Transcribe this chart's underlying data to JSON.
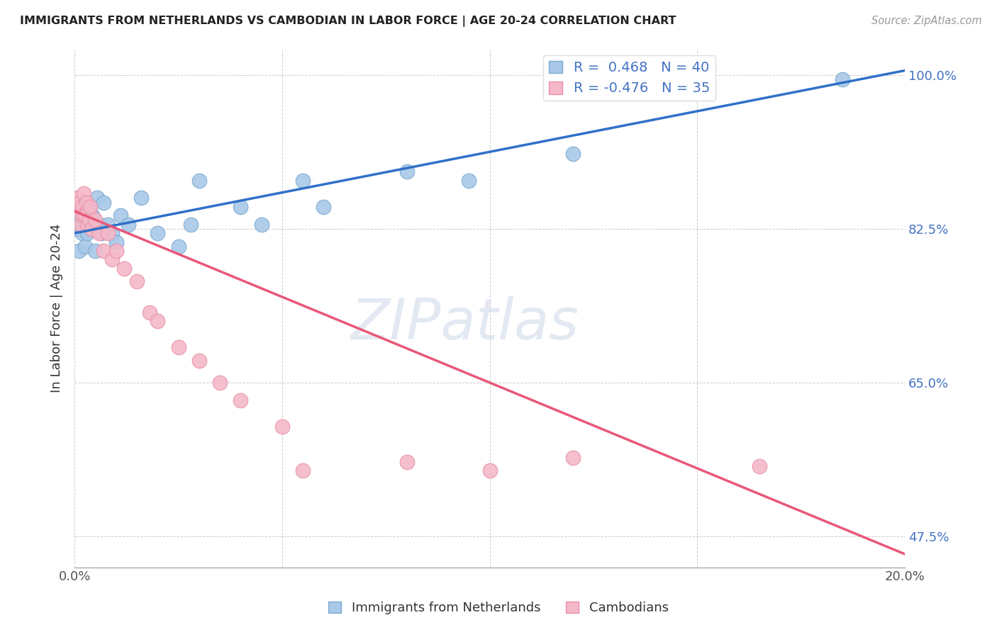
{
  "title": "IMMIGRANTS FROM NETHERLANDS VS CAMBODIAN IN LABOR FORCE | AGE 20-24 CORRELATION CHART",
  "source": "Source: ZipAtlas.com",
  "ylabel": "In Labor Force | Age 20-24",
  "xlim": [
    0.0,
    20.0
  ],
  "ylim": [
    44.0,
    103.0
  ],
  "yticks": [
    47.5,
    65.0,
    82.5,
    100.0
  ],
  "xticks": [
    0.0,
    5.0,
    10.0,
    15.0,
    20.0
  ],
  "xtick_labels": [
    "0.0%",
    "",
    "",
    "",
    "20.0%"
  ],
  "ytick_labels": [
    "47.5%",
    "65.0%",
    "82.5%",
    "100.0%"
  ],
  "netherlands_R": 0.468,
  "netherlands_N": 40,
  "cambodian_R": -0.476,
  "cambodian_N": 35,
  "netherlands_color": "#a8c8e8",
  "netherlands_edge": "#7aaad0",
  "cambodian_color": "#f4b8c8",
  "cambodian_edge": "#e890a8",
  "trendline_netherlands_color": "#3070c8",
  "trendline_cambodian_color": "#e85878",
  "background_color": "#ffffff",
  "watermark": "ZIPatlas",
  "netherlands_x": [
    0.05,
    0.08,
    0.1,
    0.1,
    0.12,
    0.15,
    0.18,
    0.2,
    0.22,
    0.25,
    0.28,
    0.3,
    0.32,
    0.35,
    0.38,
    0.4,
    0.42,
    0.5,
    0.55,
    0.6,
    0.65,
    0.7,
    0.8,
    0.9,
    1.0,
    1.1,
    1.3,
    1.6,
    2.0,
    2.5,
    2.8,
    3.0,
    4.0,
    4.5,
    5.5,
    6.0,
    8.0,
    9.5,
    12.0,
    18.5
  ],
  "netherlands_y": [
    82.5,
    83.0,
    80.0,
    84.0,
    83.5,
    85.0,
    82.0,
    84.5,
    83.0,
    80.5,
    85.5,
    82.0,
    84.0,
    83.0,
    85.0,
    82.5,
    84.0,
    80.0,
    86.0,
    83.0,
    82.0,
    85.5,
    83.0,
    82.0,
    81.0,
    84.0,
    83.0,
    86.0,
    82.0,
    80.5,
    83.0,
    88.0,
    85.0,
    83.0,
    88.0,
    85.0,
    89.0,
    88.0,
    91.0,
    99.5
  ],
  "cambodian_x": [
    0.05,
    0.08,
    0.1,
    0.12,
    0.15,
    0.18,
    0.2,
    0.22,
    0.25,
    0.28,
    0.3,
    0.32,
    0.35,
    0.38,
    0.4,
    0.5,
    0.6,
    0.7,
    0.8,
    0.9,
    1.0,
    1.2,
    1.5,
    1.8,
    2.0,
    2.5,
    3.0,
    3.5,
    4.0,
    5.0,
    5.5,
    8.0,
    10.0,
    12.0,
    16.5
  ],
  "cambodian_y": [
    85.0,
    86.0,
    84.5,
    85.5,
    83.0,
    85.0,
    84.0,
    86.5,
    84.0,
    85.5,
    83.0,
    84.5,
    83.5,
    85.0,
    82.5,
    83.5,
    82.0,
    80.0,
    82.0,
    79.0,
    80.0,
    78.0,
    76.5,
    73.0,
    72.0,
    69.0,
    67.5,
    65.0,
    63.0,
    60.0,
    55.0,
    56.0,
    55.0,
    56.5,
    55.5
  ],
  "nl_trend_x0": 0.0,
  "nl_trend_y0": 82.0,
  "nl_trend_x1": 20.0,
  "nl_trend_y1": 100.5,
  "cam_trend_x0": 0.0,
  "cam_trend_y0": 84.5,
  "cam_trend_x1": 20.0,
  "cam_trend_y1": 45.5
}
